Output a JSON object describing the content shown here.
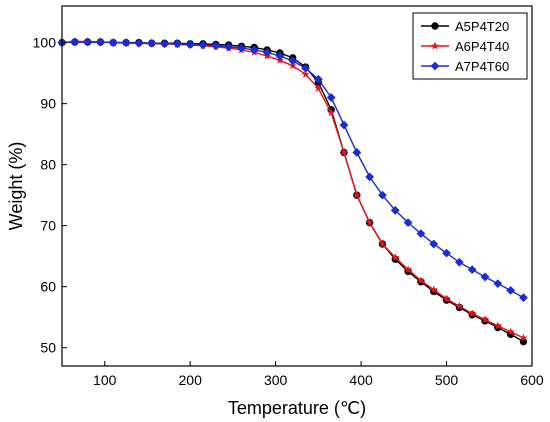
{
  "chart_data": {
    "type": "line",
    "title": "",
    "xlabel": "Temperature (℃)",
    "ylabel": "Weight (%)",
    "xlim": [
      50,
      600
    ],
    "ylim": [
      47,
      106
    ],
    "x_ticks": [
      100,
      200,
      300,
      400,
      500,
      600
    ],
    "y_ticks": [
      50,
      60,
      70,
      80,
      90,
      100
    ],
    "grid": false,
    "legend_position": "top-right",
    "series": [
      {
        "name": "A5P4T20",
        "color": "#000000",
        "marker": "circle",
        "x": [
          50,
          65,
          80,
          95,
          110,
          125,
          140,
          155,
          170,
          185,
          200,
          215,
          230,
          245,
          260,
          275,
          290,
          305,
          320,
          335,
          350,
          365,
          380,
          395,
          410,
          425,
          440,
          455,
          470,
          485,
          500,
          515,
          530,
          545,
          560,
          575,
          590
        ],
        "y": [
          100.0,
          100.1,
          100.1,
          100.1,
          100.0,
          100.0,
          100.0,
          99.9,
          99.9,
          99.9,
          99.8,
          99.8,
          99.7,
          99.6,
          99.4,
          99.2,
          98.8,
          98.3,
          97.5,
          96.0,
          93.5,
          89.0,
          82.0,
          75.0,
          70.5,
          67.0,
          64.5,
          62.5,
          60.8,
          59.2,
          57.8,
          56.6,
          55.4,
          54.4,
          53.3,
          52.2,
          51.0
        ]
      },
      {
        "name": "A6P4T40",
        "color": "#e8141a",
        "marker": "star",
        "x": [
          50,
          65,
          80,
          95,
          110,
          125,
          140,
          155,
          170,
          185,
          200,
          215,
          230,
          245,
          260,
          275,
          290,
          305,
          320,
          335,
          350,
          365,
          380,
          395,
          410,
          425,
          440,
          455,
          470,
          485,
          500,
          515,
          530,
          545,
          560,
          575,
          590
        ],
        "y": [
          100.0,
          100.2,
          100.2,
          100.1,
          100.0,
          99.9,
          99.9,
          99.8,
          99.8,
          99.7,
          99.6,
          99.5,
          99.3,
          99.1,
          98.8,
          98.4,
          97.8,
          97.1,
          96.2,
          94.8,
          92.5,
          88.5,
          82.0,
          75.0,
          70.5,
          67.0,
          64.8,
          62.8,
          61.0,
          59.5,
          58.0,
          56.8,
          55.6,
          54.6,
          53.6,
          52.6,
          51.6
        ]
      },
      {
        "name": "A7P4T60",
        "color": "#1a2cd8",
        "marker": "diamond",
        "x": [
          50,
          65,
          80,
          95,
          110,
          125,
          140,
          155,
          170,
          185,
          200,
          215,
          230,
          245,
          260,
          275,
          290,
          305,
          320,
          335,
          350,
          365,
          380,
          395,
          410,
          425,
          440,
          455,
          470,
          485,
          500,
          515,
          530,
          545,
          560,
          575,
          590
        ],
        "y": [
          100.0,
          100.1,
          100.1,
          100.1,
          100.0,
          100.0,
          99.9,
          99.9,
          99.8,
          99.8,
          99.7,
          99.6,
          99.5,
          99.3,
          99.1,
          98.8,
          98.4,
          97.8,
          97.0,
          95.8,
          94.0,
          91.0,
          86.5,
          82.0,
          78.0,
          75.0,
          72.5,
          70.5,
          68.7,
          67.0,
          65.5,
          64.0,
          62.8,
          61.6,
          60.5,
          59.4,
          58.2
        ]
      }
    ]
  }
}
